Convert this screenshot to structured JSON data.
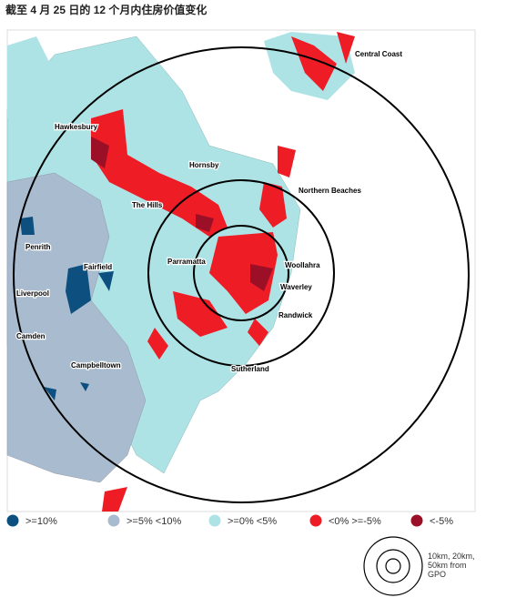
{
  "title": "截至 4 月 25 日的 12 个月内住房价值变化",
  "map": {
    "labels": [
      "Central Coast",
      "Hawkesbury",
      "Hornsby",
      "Northern Beaches",
      "The Hills",
      "Penrith",
      "Parramatta",
      "Woollahra",
      "Fairfield",
      "Waverley",
      "Liverpool",
      "Randwick",
      "Camden",
      "Campbelltown",
      "Sutherland"
    ]
  },
  "legend": [
    {
      "label": ">=10%",
      "color": "#0d4f7e"
    },
    {
      "label": ">=5% <10%",
      "color": "#a9bccf"
    },
    {
      "label": ">=0% <5%",
      "color": "#aee3e6"
    },
    {
      "label": "<0% >=-5%",
      "color": "#ee1c25"
    },
    {
      "label": "<-5%",
      "color": "#9b1027"
    }
  ],
  "ring_legend": {
    "lines": [
      "10km, 20km,",
      "50km from",
      "GPO"
    ]
  }
}
